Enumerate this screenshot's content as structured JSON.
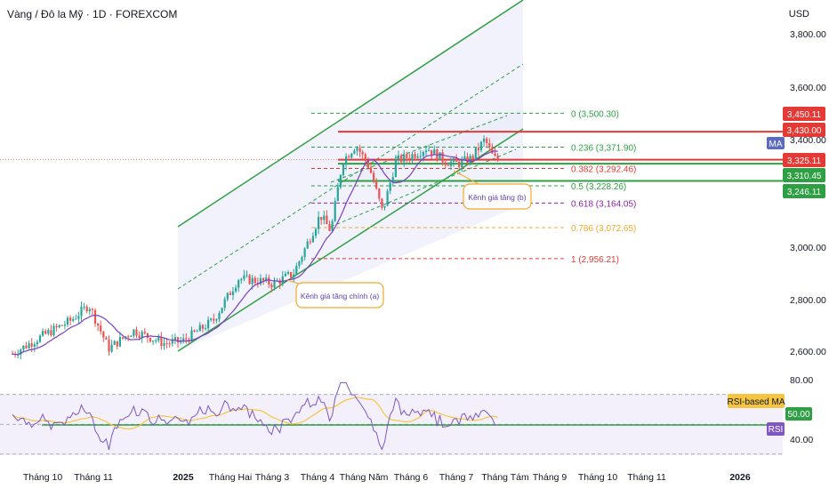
{
  "header": {
    "symbol_title": "Vàng / Đô la Mỹ · 1D · FOREXCOM",
    "currency": "USD"
  },
  "colors": {
    "up": "#26a69a",
    "down": "#ef5350",
    "ma": "#7b3fbf",
    "channel": "#2ea043",
    "level_red": "#e53935",
    "level_green": "#2ea043",
    "rsi": "#7e57c2",
    "rsi_ma": "#f5c542"
  },
  "chart_data": [
    {
      "type": "candlestick",
      "title": "Vàng / Đô la Mỹ · 1D · FOREXCOM",
      "x_axis_labels": [
        "Tháng 10",
        "Tháng 11",
        "2025",
        "Tháng Hai",
        "Tháng 3",
        "Tháng 4",
        "Tháng Năm",
        "Tháng 6",
        "Tháng 7",
        "Tháng Tám",
        "Tháng 9",
        "Tháng 10",
        "Tháng 11",
        "2026"
      ],
      "y_axis_ticks": [
        "3,800.00",
        "3,600.00",
        "3,400.00",
        "3,000.00",
        "2,800.00",
        "2,600.00"
      ],
      "ylim": [
        2530,
        3850
      ],
      "price_path": [
        {
          "x": "Tháng 10",
          "close": 2640
        },
        {
          "x": "Tháng 11",
          "close": 2730
        },
        {
          "x": "Tháng 11",
          "close": 2760
        },
        {
          "x": "2025",
          "close": 2630
        },
        {
          "x": "Tháng Hai",
          "close": 2880
        },
        {
          "x": "Tháng 3",
          "close": 2910
        },
        {
          "x": "Tháng 4",
          "close": 3130
        },
        {
          "x": "Tháng Năm",
          "close": 3320
        },
        {
          "x": "Tháng 6",
          "close": 3340
        },
        {
          "x": "Tháng 7",
          "close": 3330
        },
        {
          "x": "Tháng Tám",
          "close": 3325
        }
      ],
      "fibonacci": [
        {
          "label": "0 (3,500.30)",
          "value": 3500.3
        },
        {
          "label": "0.236 (3,371.90)",
          "value": 3371.9
        },
        {
          "label": "0.382 (3,292.46)",
          "value": 3292.46
        },
        {
          "label": "0.5 (3,228.26)",
          "value": 3228.26
        },
        {
          "label": "0.618 (3,164.05)",
          "value": 3164.05
        },
        {
          "label": "0.786 (3,072.65)",
          "value": 3072.65
        },
        {
          "label": "1 (2,956.21)",
          "value": 2956.21
        }
      ],
      "price_tags": [
        {
          "text": "3,450.11",
          "value": 3450.11,
          "color": "#e53935"
        },
        {
          "text": "3,430.00",
          "value": 3430.0,
          "color": "#e53935"
        },
        {
          "text": "3,325.11",
          "value": 3325.11,
          "color": "#e53935"
        },
        {
          "text": "3,310.45",
          "value": 3310.45,
          "color": "#2ea043"
        },
        {
          "text": "3,246.11",
          "value": 3246.11,
          "color": "#2ea043"
        }
      ],
      "ma_tag": "MA",
      "annotations": [
        {
          "text": "Kênh giá tăng chính (a)"
        },
        {
          "text": "Kênh giá tăng (b)"
        }
      ]
    },
    {
      "type": "line",
      "title": "RSI",
      "y_axis_ticks": [
        "80.00",
        "40.00"
      ],
      "ylim": [
        30,
        85
      ],
      "levels": [
        70,
        50,
        30
      ],
      "rsi_ma_label": "RSI-based MA",
      "rsi_tag": "RSI",
      "value_tag": "50.00"
    }
  ]
}
